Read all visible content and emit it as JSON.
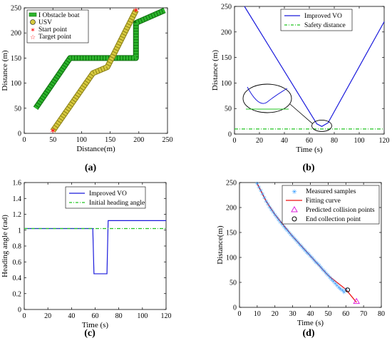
{
  "chart_data": [
    {
      "panel": "a",
      "type": "line",
      "xlabel": "Distance(m)",
      "ylabel": "Distance (m)",
      "xlim": [
        0,
        250
      ],
      "ylim": [
        0,
        250
      ],
      "xticks": [
        0,
        50,
        100,
        150,
        200,
        250
      ],
      "yticks": [
        0,
        50,
        100,
        150,
        200,
        250
      ],
      "legend": {
        "placement": "top-left",
        "entries": [
          "I Obstacle boat",
          "USV",
          "Start point",
          "Target point"
        ]
      },
      "series": [
        {
          "name": "I Obstacle boat",
          "color": "#2db52d",
          "points": [
            {
              "x": 20,
              "y": 50
            },
            {
              "x": 80,
              "y": 150
            },
            {
              "x": 195,
              "y": 150
            },
            {
              "x": 195,
              "y": 220
            },
            {
              "x": 245,
              "y": 245
            }
          ]
        },
        {
          "name": "USV",
          "color": "#d6c93e",
          "points": [
            {
              "x": 50,
              "y": 5
            },
            {
              "x": 120,
              "y": 120
            },
            {
              "x": 145,
              "y": 132
            },
            {
              "x": 195,
              "y": 245
            }
          ]
        }
      ],
      "markers": [
        {
          "name": "Start point",
          "x": 50,
          "y": 5,
          "color": "#ff2020"
        },
        {
          "name": "Target point",
          "x": 195,
          "y": 245,
          "color": "#ff2020"
        }
      ]
    },
    {
      "panel": "b",
      "type": "line",
      "xlabel": "Time (s)",
      "ylabel": "Distance (m)",
      "xlim": [
        0,
        120
      ],
      "ylim": [
        0,
        250
      ],
      "xticks": [
        0,
        20,
        40,
        60,
        80,
        100,
        120
      ],
      "yticks": [
        0,
        50,
        100,
        150,
        200,
        250
      ],
      "legend": {
        "placement": "top-right",
        "entries": [
          "Improved VO",
          "Safety distance"
        ]
      },
      "series": [
        {
          "name": "Improved VO",
          "color": "#1a1adc",
          "x": [
            8,
            66,
            70,
            75,
            120
          ],
          "y": [
            250,
            20,
            15,
            22,
            220
          ]
        },
        {
          "name": "Safety distance",
          "color": "#22c422",
          "x": [
            0,
            120
          ],
          "y": [
            10,
            10
          ]
        }
      ],
      "annotation": {
        "type": "zoom-inset",
        "target": {
          "x": 70,
          "y": 12
        },
        "placement": "upper-left"
      }
    },
    {
      "panel": "c",
      "type": "line",
      "xlabel": "Time    (s)",
      "ylabel": "Heading angle  (rad)",
      "xlim": [
        0,
        120
      ],
      "ylim": [
        0,
        1.6
      ],
      "xticks": [
        0,
        20,
        40,
        60,
        80,
        100,
        120
      ],
      "yticks": [
        0,
        0.2,
        0.4,
        0.6,
        0.8,
        1,
        1.2,
        1.4,
        1.6
      ],
      "legend": {
        "placement": "top-center",
        "entries": [
          "Improved VO",
          "Initial heading angle"
        ]
      },
      "series": [
        {
          "name": "Improved VO",
          "color": "#1a1adc",
          "x": [
            0,
            58,
            59,
            70,
            71,
            120
          ],
          "y": [
            1.02,
            1.02,
            0.45,
            0.45,
            1.12,
            1.12
          ]
        },
        {
          "name": "Initial heading angle",
          "color": "#22c422",
          "x": [
            0,
            120
          ],
          "y": [
            1.02,
            1.02
          ]
        }
      ]
    },
    {
      "panel": "d",
      "type": "scatter",
      "xlabel": "Time (s)",
      "ylabel": "Distance(m)",
      "xlim": [
        0,
        80
      ],
      "ylim": [
        0,
        250
      ],
      "xticks": [
        0,
        10,
        20,
        30,
        40,
        50,
        60,
        70,
        80
      ],
      "yticks": [
        0,
        50,
        100,
        150,
        200,
        250
      ],
      "legend": {
        "placement": "top-right",
        "entries": [
          "Measured samples",
          "Fitting curve",
          "Predicted collision points",
          "End collection point"
        ]
      },
      "series": [
        {
          "name": "Measured samples",
          "color": "#1e90ff",
          "x": [
            10,
            11,
            12,
            13,
            14,
            15,
            16,
            17,
            18,
            19,
            20,
            21,
            22,
            23,
            24,
            25,
            26,
            27,
            28,
            29,
            30,
            31,
            32,
            33,
            34,
            35,
            36,
            37,
            38,
            39,
            40,
            41,
            42,
            43,
            44,
            45,
            46,
            47,
            48,
            49,
            50,
            51,
            52,
            53,
            54,
            55,
            56,
            57,
            58,
            59,
            60
          ],
          "y": [
            248,
            241,
            234,
            227,
            220,
            213,
            207,
            201,
            196,
            191,
            186,
            181,
            176,
            171,
            167,
            162,
            158,
            154,
            150,
            146,
            142,
            138,
            134,
            130,
            126,
            122,
            118,
            114,
            110,
            107,
            103,
            99,
            95,
            91,
            88,
            84,
            80,
            76,
            72,
            68,
            64,
            60,
            56,
            52,
            48,
            44,
            40,
            37,
            34,
            31,
            36
          ]
        },
        {
          "name": "Fitting curve",
          "color": "#ee1111",
          "x": [
            10,
            15,
            20,
            30,
            40,
            50,
            60,
            66
          ],
          "y": [
            248,
            213,
            186,
            142,
            103,
            64,
            36,
            10
          ]
        },
        {
          "name": "Predicted collision points",
          "color": "#dd22dd",
          "x": [
            66
          ],
          "y": [
            12
          ]
        },
        {
          "name": "End collection point",
          "color": "#000000",
          "x": [
            61
          ],
          "y": [
            35
          ]
        }
      ]
    }
  ],
  "captions": [
    "(a)",
    "(b)",
    "(c)",
    "(d)"
  ]
}
